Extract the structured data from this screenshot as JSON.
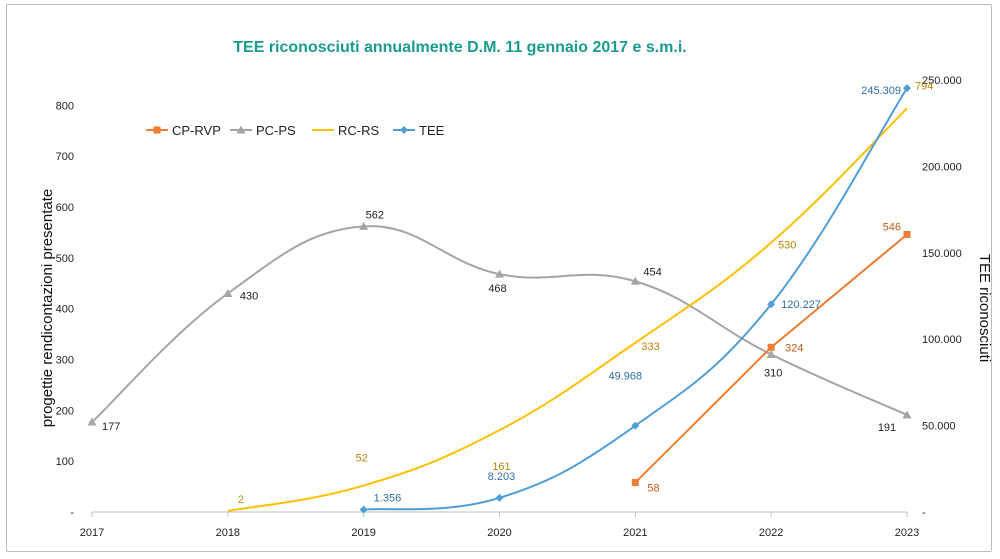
{
  "chart_data": {
    "type": "line",
    "title": "TEE riconosciuti annualmente D.M. 11 gennaio 2017 e s.m.i.",
    "x_categories": [
      "2017",
      "2018",
      "2019",
      "2020",
      "2021",
      "2022",
      "2023"
    ],
    "y_left": {
      "label": "progettie rendicontazioni presentate",
      "range": [
        0,
        850
      ],
      "ticks": [
        0,
        100,
        200,
        300,
        400,
        500,
        600,
        700,
        800
      ],
      "tick_labels": [
        "-",
        "100",
        "200",
        "300",
        "400",
        "500",
        "600",
        "700",
        "800"
      ]
    },
    "y_right": {
      "label": "TEE riconosciuti",
      "range": [
        0,
        250000
      ],
      "ticks": [
        0,
        50000,
        100000,
        150000,
        200000,
        250000
      ],
      "tick_labels": [
        "-",
        "50.000",
        "100.000",
        "150.000",
        "200.000",
        "250.000"
      ]
    },
    "legend_position": "top-left",
    "grid": false,
    "series": [
      {
        "name": "CP-RVP",
        "axis": "left",
        "color": "#ed7d31",
        "marker": "square",
        "smooth": false,
        "points": [
          {
            "x": "2021",
            "y": 58,
            "label": "58"
          },
          {
            "x": "2022",
            "y": 324,
            "label": "324"
          },
          {
            "x": "2023",
            "y": 546,
            "label": "546"
          }
        ]
      },
      {
        "name": "PC-PS",
        "axis": "left",
        "color": "#a5a5a5",
        "marker": "triangle",
        "smooth": true,
        "points": [
          {
            "x": "2017",
            "y": 177,
            "label": "177"
          },
          {
            "x": "2018",
            "y": 430,
            "label": "430"
          },
          {
            "x": "2019",
            "y": 562,
            "label": "562"
          },
          {
            "x": "2020",
            "y": 468,
            "label": "468"
          },
          {
            "x": "2021",
            "y": 454,
            "label": "454"
          },
          {
            "x": "2022",
            "y": 310,
            "label": "310"
          },
          {
            "x": "2023",
            "y": 191,
            "label": "191"
          }
        ]
      },
      {
        "name": "RC-RS",
        "axis": "left",
        "color": "#ffc000",
        "marker": "none",
        "smooth": true,
        "points": [
          {
            "x": "2018",
            "y": 2,
            "label": "2"
          },
          {
            "x": "2019",
            "y": 52,
            "label": "52"
          },
          {
            "x": "2020",
            "y": 161,
            "label": "161"
          },
          {
            "x": "2021",
            "y": 333,
            "label": "333"
          },
          {
            "x": "2022",
            "y": 530,
            "label": "530"
          },
          {
            "x": "2023",
            "y": 794,
            "label": "794"
          }
        ]
      },
      {
        "name": "TEE",
        "axis": "right",
        "color": "#4f9ed8",
        "marker": "diamond",
        "smooth": true,
        "points": [
          {
            "x": "2019",
            "y": 1356,
            "label": "1.356"
          },
          {
            "x": "2020",
            "y": 8203,
            "label": "8.203"
          },
          {
            "x": "2021",
            "y": 49968,
            "label": "49.968"
          },
          {
            "x": "2022",
            "y": 120227,
            "label": "120.227"
          },
          {
            "x": "2023",
            "y": 245309,
            "label": "245.309"
          }
        ]
      }
    ]
  }
}
